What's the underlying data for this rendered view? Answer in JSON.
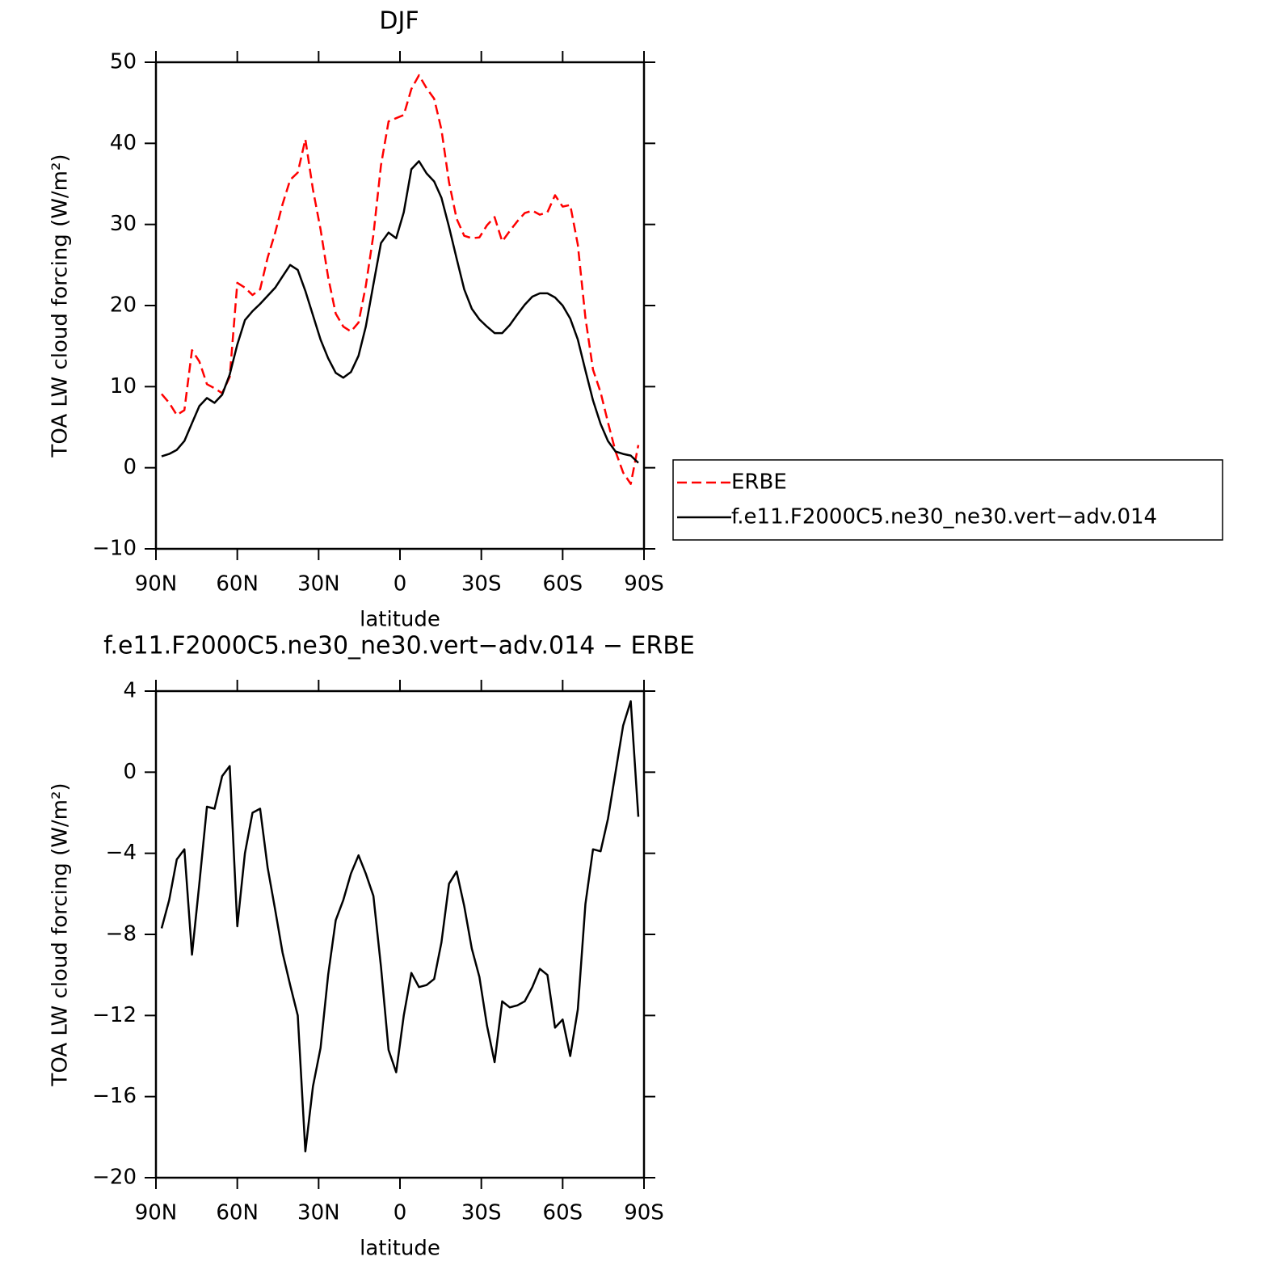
{
  "chart_data": [
    {
      "type": "line",
      "title": "DJF",
      "xlabel": "latitude",
      "ylabel": "TOA LW cloud forcing (W/m²)",
      "xlim": [
        90,
        -90
      ],
      "xticks": [
        {
          "value": 90,
          "label": "90N"
        },
        {
          "value": 60,
          "label": "60N"
        },
        {
          "value": 30,
          "label": "30N"
        },
        0,
        {
          "value": -30,
          "label": "30S"
        },
        {
          "value": -60,
          "label": "60S"
        },
        {
          "value": -90,
          "label": "90S"
        }
      ],
      "ylim": [
        -10,
        50
      ],
      "yticks": [
        -10,
        0,
        10,
        20,
        30,
        40,
        50
      ],
      "x": [
        87.9,
        85.1,
        82.3,
        79.5,
        76.7,
        74.0,
        71.2,
        68.4,
        65.6,
        62.8,
        60.0,
        57.2,
        54.4,
        51.6,
        48.8,
        46.0,
        43.3,
        40.5,
        37.7,
        34.9,
        32.1,
        29.3,
        26.5,
        23.7,
        20.9,
        18.1,
        15.3,
        12.6,
        9.8,
        7.0,
        4.2,
        1.4,
        -1.4,
        -4.2,
        -7.0,
        -9.8,
        -12.6,
        -15.3,
        -18.1,
        -20.9,
        -23.7,
        -26.5,
        -29.3,
        -32.1,
        -34.9,
        -37.7,
        -40.5,
        -43.3,
        -46.0,
        -48.8,
        -51.6,
        -54.4,
        -57.2,
        -60.0,
        -62.8,
        -65.6,
        -68.4,
        -71.2,
        -74.0,
        -76.7,
        -79.5,
        -82.3,
        -85.1,
        -87.9
      ],
      "series": [
        {
          "name": "ERBE",
          "color": "#ff0000",
          "style": "dashed",
          "values": [
            9.1,
            8.0,
            6.5,
            7.1,
            14.5,
            13.1,
            10.3,
            9.8,
            9.2,
            11.2,
            22.8,
            22.2,
            21.3,
            22.0,
            25.9,
            29.0,
            32.5,
            35.5,
            36.4,
            40.5,
            34.3,
            29.4,
            23.5,
            19.0,
            17.4,
            16.8,
            17.9,
            22.4,
            28.7,
            37.3,
            42.7,
            43.1,
            43.5,
            46.7,
            48.4,
            46.8,
            45.5,
            41.7,
            35.2,
            30.7,
            28.6,
            28.3,
            28.4,
            29.9,
            30.9,
            27.9,
            29.2,
            30.4,
            31.4,
            31.7,
            31.2,
            31.5,
            33.6,
            32.2,
            32.4,
            27.5,
            18.5,
            12.1,
            9.3,
            5.6,
            2.0,
            -0.6,
            -2.0,
            2.8
          ]
        },
        {
          "name": "f.e11.F2000C5.ne30_ne30.vert−adv.014",
          "color": "#000000",
          "style": "solid",
          "values": [
            1.4,
            1.7,
            2.2,
            3.3,
            5.5,
            7.6,
            8.6,
            8.0,
            9.0,
            11.5,
            15.2,
            18.2,
            19.3,
            20.2,
            21.2,
            22.2,
            23.6,
            25.0,
            24.4,
            21.8,
            18.8,
            15.8,
            13.5,
            11.7,
            11.1,
            11.8,
            13.8,
            17.4,
            22.6,
            27.7,
            29.0,
            28.3,
            31.5,
            36.8,
            37.8,
            36.3,
            35.3,
            33.3,
            29.7,
            25.8,
            22.0,
            19.6,
            18.3,
            17.4,
            16.6,
            16.6,
            17.6,
            18.9,
            20.1,
            21.1,
            21.5,
            21.5,
            21.0,
            20.0,
            18.4,
            15.8,
            12.0,
            8.3,
            5.4,
            3.3,
            2.0,
            1.7,
            1.5,
            0.6
          ]
        }
      ]
    },
    {
      "type": "line",
      "title": "f.e11.F2000C5.ne30_ne30.vert−adv.014 − ERBE",
      "xlabel": "latitude",
      "ylabel": "TOA LW cloud forcing (W/m²)",
      "xlim": [
        90,
        -90
      ],
      "xticks": [
        {
          "value": 90,
          "label": "90N"
        },
        {
          "value": 60,
          "label": "60N"
        },
        {
          "value": 30,
          "label": "30N"
        },
        0,
        {
          "value": -30,
          "label": "30S"
        },
        {
          "value": -60,
          "label": "60S"
        },
        {
          "value": -90,
          "label": "90S"
        }
      ],
      "ylim": [
        -20,
        4
      ],
      "yticks": [
        -20,
        -16,
        -12,
        -8,
        -4,
        0,
        4
      ],
      "x": [
        87.9,
        85.1,
        82.3,
        79.5,
        76.7,
        74.0,
        71.2,
        68.4,
        65.6,
        62.8,
        60.0,
        57.2,
        54.4,
        51.6,
        48.8,
        46.0,
        43.3,
        40.5,
        37.7,
        34.9,
        32.1,
        29.3,
        26.5,
        23.7,
        20.9,
        18.1,
        15.3,
        12.6,
        9.8,
        7.0,
        4.2,
        1.4,
        -1.4,
        -4.2,
        -7.0,
        -9.8,
        -12.6,
        -15.3,
        -18.1,
        -20.9,
        -23.7,
        -26.5,
        -29.3,
        -32.1,
        -34.9,
        -37.7,
        -40.5,
        -43.3,
        -46.0,
        -48.8,
        -51.6,
        -54.4,
        -57.2,
        -60.0,
        -62.8,
        -65.6,
        -68.4,
        -71.2,
        -74.0,
        -76.7,
        -79.5,
        -82.3,
        -85.1,
        -87.9
      ],
      "color": "#000000",
      "values": [
        -7.7,
        -6.3,
        -4.3,
        -3.8,
        -9.0,
        -5.5,
        -1.7,
        -1.8,
        -0.2,
        0.3,
        -7.6,
        -4.0,
        -2.0,
        -1.8,
        -4.7,
        -6.8,
        -8.9,
        -10.5,
        -12.0,
        -18.7,
        -15.5,
        -13.6,
        -10.0,
        -7.3,
        -6.3,
        -5.0,
        -4.1,
        -5.0,
        -6.1,
        -9.6,
        -13.7,
        -14.8,
        -12.0,
        -9.9,
        -10.6,
        -10.5,
        -10.2,
        -8.4,
        -5.5,
        -4.9,
        -6.6,
        -8.7,
        -10.1,
        -12.5,
        -14.3,
        -11.3,
        -11.6,
        -11.5,
        -11.3,
        -10.6,
        -9.7,
        -10.0,
        -12.6,
        -12.2,
        -14.0,
        -11.7,
        -6.5,
        -3.8,
        -3.9,
        -2.3,
        0.0,
        2.3,
        3.5,
        -2.2
      ]
    }
  ]
}
